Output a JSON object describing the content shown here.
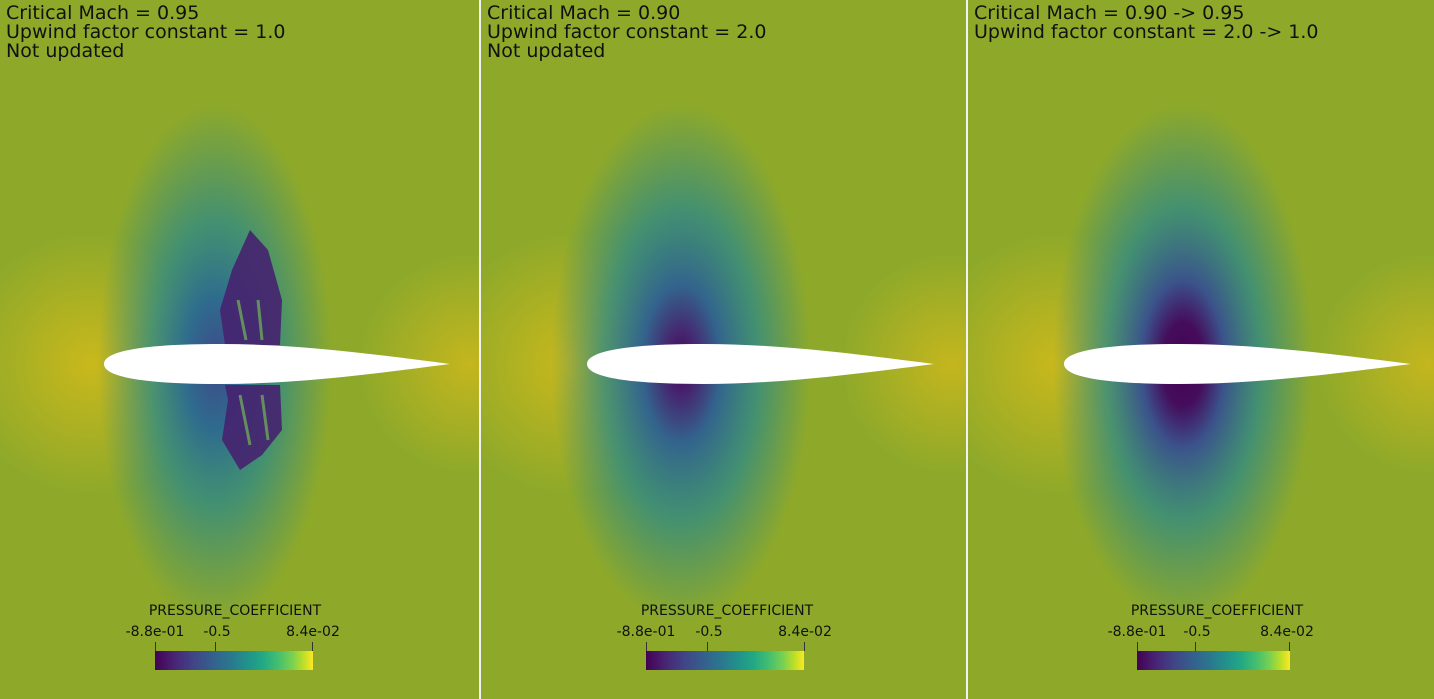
{
  "panels": [
    {
      "lines": [
        "Critical Mach = 0.95",
        "Upwind factor constant = 1.0",
        "Not updated"
      ],
      "colorbar": {
        "title": "PRESSURE_COEFFICIENT",
        "min_label": "-8.8e-01",
        "mid_label": "-0.5",
        "max_label": "8.4e-02"
      }
    },
    {
      "lines": [
        "Critical Mach = 0.90",
        "Upwind factor constant = 2.0",
        "Not updated"
      ],
      "colorbar": {
        "title": "PRESSURE_COEFFICIENT",
        "min_label": "-8.8e-01",
        "mid_label": "-0.5",
        "max_label": "8.4e-02"
      }
    },
    {
      "lines": [
        "Critical Mach = 0.90 -> 0.95",
        "Upwind factor constant = 2.0 -> 1.0"
      ],
      "colorbar": {
        "title": "PRESSURE_COEFFICIENT",
        "min_label": "-8.8e-01",
        "mid_label": "-0.5",
        "max_label": "8.4e-02"
      }
    }
  ],
  "colormap": {
    "name": "viridis",
    "min_color": "#440154",
    "max_color": "#fde725",
    "background": "#8aa92a",
    "airfoil_color": "#ffffff"
  }
}
